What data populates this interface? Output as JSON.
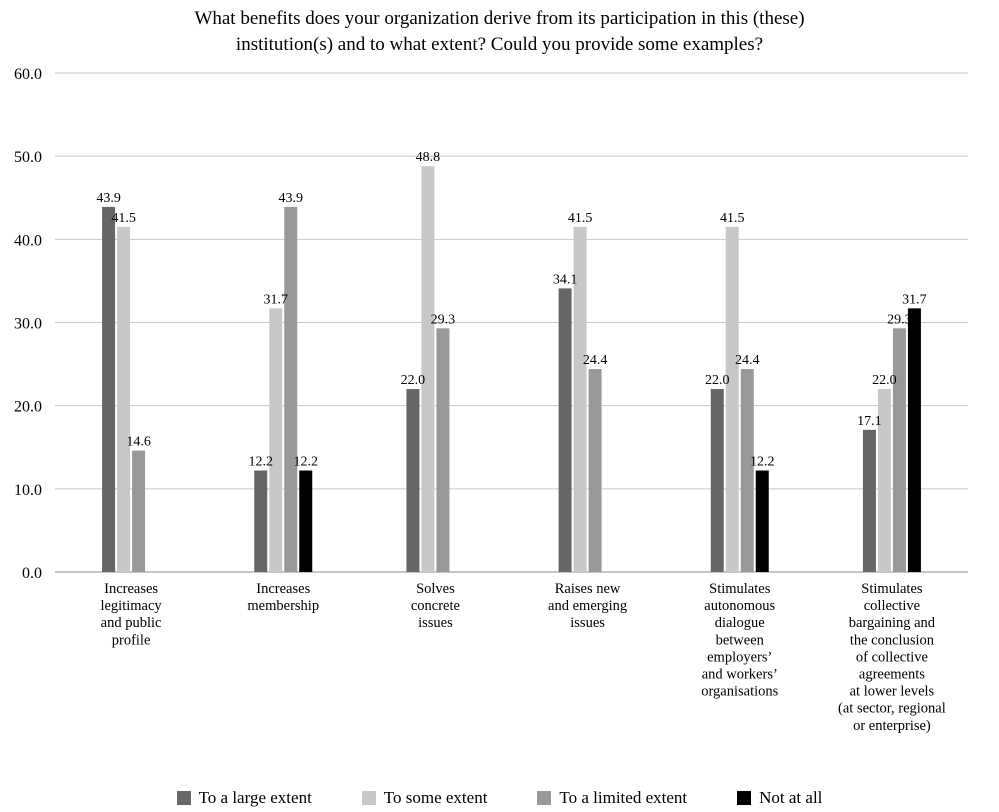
{
  "chart_data": {
    "type": "bar",
    "title": "What benefits does your organization derive from its participation in this (these)\ninstitution(s) and to what extent? Could you provide some examples?",
    "xlabel": "",
    "ylabel": "",
    "ylim": [
      0,
      60
    ],
    "yticks": [
      "0.0",
      "10.0",
      "20.0",
      "30.0",
      "40.0",
      "50.0",
      "60.0"
    ],
    "grid": true,
    "legend_position": "bottom",
    "categories": [
      "Increases\nlegitimacy\nand public\nprofile",
      "Increases\nmembership",
      "Solves\nconcrete\nissues",
      "Raises new\nand emerging\nissues",
      "Stimulates\nautonomous\ndialogue\nbetween\nemployers’\nand workers’\norganisations",
      "Stimulates\ncollective\nbargaining and\nthe conclusion\nof  collective\nagreements\nat lower levels\n(at sector, regional\nor enterprise)"
    ],
    "series": [
      {
        "name": "To a large extent",
        "color": "#666666",
        "values": [
          43.9,
          12.2,
          22.0,
          34.1,
          22.0,
          17.1
        ]
      },
      {
        "name": "To some extent",
        "color": "#c8c8c8",
        "values": [
          41.5,
          31.7,
          48.8,
          41.5,
          41.5,
          22.0
        ]
      },
      {
        "name": "To a limited extent",
        "color": "#999999",
        "values": [
          14.6,
          43.9,
          29.3,
          24.4,
          24.4,
          29.3
        ]
      },
      {
        "name": "Not at all",
        "color": "#000000",
        "values": [
          null,
          12.2,
          null,
          null,
          12.2,
          31.7
        ]
      }
    ]
  }
}
